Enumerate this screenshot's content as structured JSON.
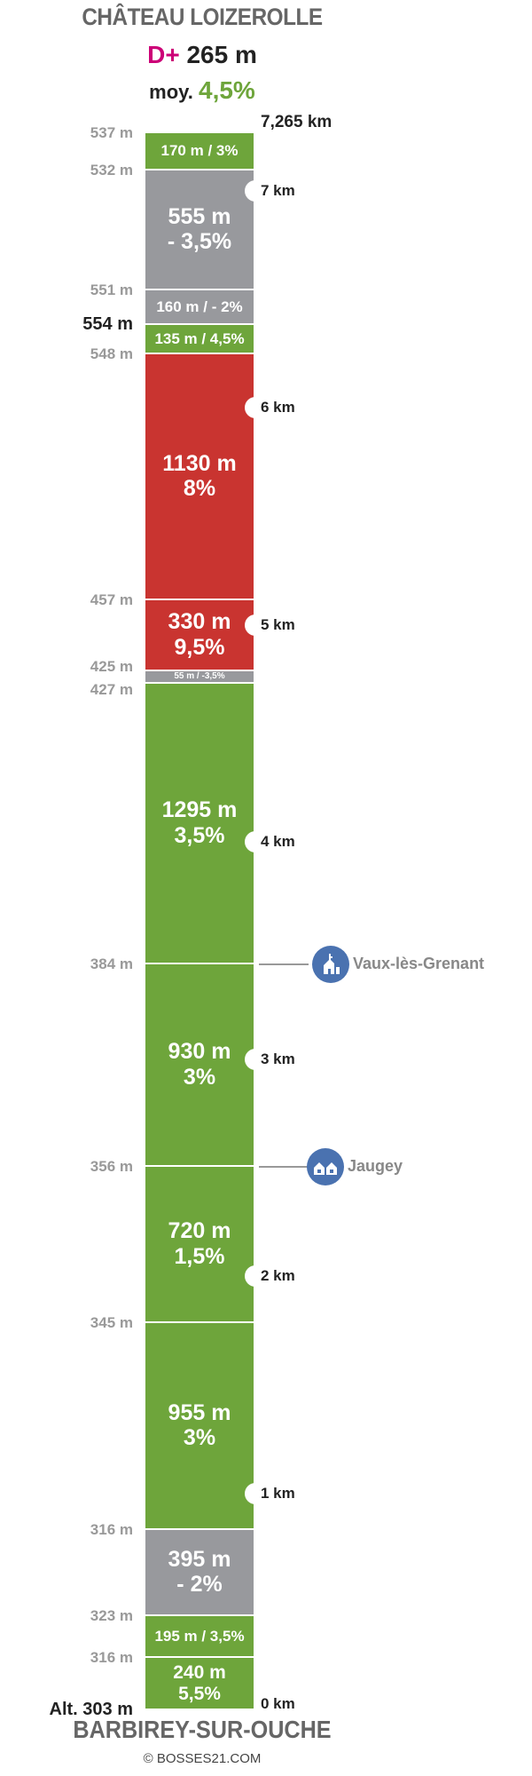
{
  "header": {
    "title": "CHÂTEAU LOIZEROLLE",
    "dplus_label": "D+",
    "dplus_value": "265 m",
    "avg_label": "moy.",
    "avg_value": "4,5%"
  },
  "footer": {
    "title": "BARBIREY-SUR-OUCHE",
    "copyright": "© BOSSES21.COM"
  },
  "colors": {
    "green": "#6ea53b",
    "gray": "#98999d",
    "red": "#c93430",
    "poi": "#4a72b0"
  },
  "chart_data": {
    "type": "climb-profile",
    "total_distance_km": 7.265,
    "segments": [
      {
        "length_m": 240,
        "slope": "5,5%",
        "text": [
          "240 m",
          "5,5%"
        ],
        "color": "green"
      },
      {
        "length_m": 195,
        "slope": "3,5%",
        "text": [
          "195 m / 3,5%"
        ],
        "color": "green"
      },
      {
        "length_m": 395,
        "slope": "- 2%",
        "text": [
          "395 m",
          "- 2%"
        ],
        "color": "gray"
      },
      {
        "length_m": 955,
        "slope": "3%",
        "text": [
          "955 m",
          "3%"
        ],
        "color": "green"
      },
      {
        "length_m": 720,
        "slope": "1,5%",
        "text": [
          "720 m",
          "1,5%"
        ],
        "color": "green"
      },
      {
        "length_m": 930,
        "slope": "3%",
        "text": [
          "930 m",
          "3%"
        ],
        "color": "green"
      },
      {
        "length_m": 1295,
        "slope": "3,5%",
        "text": [
          "1295 m",
          "3,5%"
        ],
        "color": "green"
      },
      {
        "length_m": 55,
        "slope": "-3,5%",
        "text": [
          "55 m / -3,5%"
        ],
        "color": "gray"
      },
      {
        "length_m": 330,
        "slope": "9,5%",
        "text": [
          "330 m",
          "9,5%"
        ],
        "color": "red"
      },
      {
        "length_m": 1130,
        "slope": "8%",
        "text": [
          "1130 m",
          "8%"
        ],
        "color": "red"
      },
      {
        "length_m": 135,
        "slope": "4,5%",
        "text": [
          "135 m / 4,5%"
        ],
        "color": "green"
      },
      {
        "length_m": 160,
        "slope": "- 2%",
        "text": [
          "160 m / - 2%"
        ],
        "color": "gray"
      },
      {
        "length_m": 555,
        "slope": "- 3,5%",
        "text": [
          "555 m",
          "- 3,5%"
        ],
        "color": "gray"
      },
      {
        "length_m": 170,
        "slope": "3%",
        "text": [
          "170 m / 3%"
        ],
        "color": "green"
      }
    ],
    "altitude_labels": [
      {
        "at_m": 0,
        "label": "Alt. 303 m",
        "strong": true
      },
      {
        "at_m": 240,
        "label": "316 m"
      },
      {
        "at_m": 435,
        "label": "323 m"
      },
      {
        "at_m": 830,
        "label": "316 m"
      },
      {
        "at_m": 1785,
        "label": "345 m"
      },
      {
        "at_m": 2505,
        "label": "356 m"
      },
      {
        "at_m": 3435,
        "label": "384 m"
      },
      {
        "at_m": 4730,
        "label": "427 m"
      },
      {
        "at_m": 4785,
        "label": "425 m"
      },
      {
        "at_m": 5115,
        "label": "457 m"
      },
      {
        "at_m": 6245,
        "label": "548 m"
      },
      {
        "at_m": 6380,
        "label": "554 m",
        "strong": true
      },
      {
        "at_m": 6540,
        "label": "551 m"
      },
      {
        "at_m": 7095,
        "label": "532 m"
      },
      {
        "at_m": 7265,
        "label": "537 m"
      }
    ],
    "km_markers": [
      {
        "at_m": 0,
        "label": "0 km",
        "notch": false
      },
      {
        "at_m": 1000,
        "label": "1 km",
        "notch": true
      },
      {
        "at_m": 2000,
        "label": "2 km",
        "notch": true
      },
      {
        "at_m": 3000,
        "label": "3 km",
        "notch": true
      },
      {
        "at_m": 4000,
        "label": "4 km",
        "notch": true
      },
      {
        "at_m": 5000,
        "label": "5 km",
        "notch": true
      },
      {
        "at_m": 6000,
        "label": "6 km",
        "notch": true
      },
      {
        "at_m": 7000,
        "label": "7 km",
        "notch": true
      },
      {
        "at_m": 7265,
        "label": "7,265 km",
        "notch": false
      }
    ],
    "points_of_interest": [
      {
        "at_m": 2505,
        "label": "Jaugey",
        "icon": "village-houses-icon"
      },
      {
        "at_m": 3435,
        "label": "Vaux-lès-Grenant",
        "icon": "church-icon"
      }
    ]
  }
}
